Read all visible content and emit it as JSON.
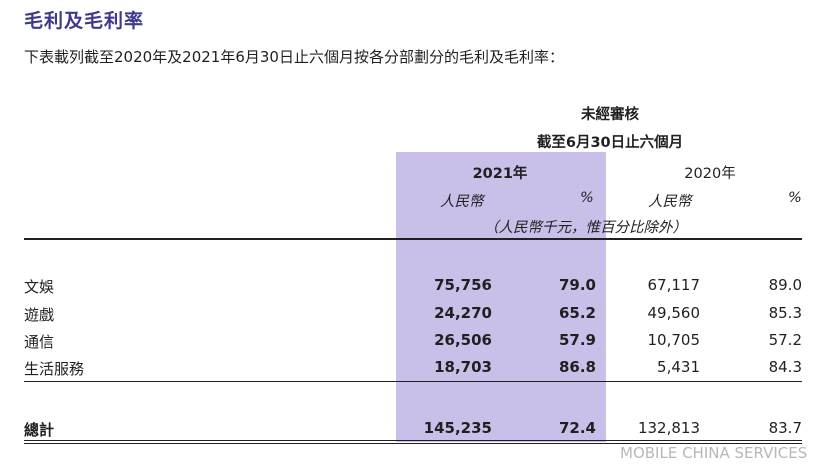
{
  "title": "毛利及毛利率",
  "subtitle": "下表載列截至2020年及2021年6月30日止六個月按各分部劃分的毛利及毛利率：",
  "header": {
    "audit": "未經審核",
    "period": "截至6月30日止六個月",
    "year_2021": "2021年",
    "year_2020": "2020年",
    "rmb_2021": "人民幣",
    "pct_2021": "%",
    "rmb_2020": "人民幣",
    "pct_2020": "%",
    "unit_note": "（人民幣千元，惟百分比除外）"
  },
  "rows": [
    {
      "label": "文娛",
      "v2021": "75,756",
      "p2021": "79.0",
      "v2020": "67,117",
      "p2020": "89.0"
    },
    {
      "label": "遊戲",
      "v2021": "24,270",
      "p2021": "65.2",
      "v2020": "49,560",
      "p2020": "85.3"
    },
    {
      "label": "通信",
      "v2021": "26,506",
      "p2021": "57.9",
      "v2020": "10,705",
      "p2020": "57.2"
    },
    {
      "label": "生活服務",
      "v2021": "18,703",
      "p2021": "86.8",
      "v2020": "5,431",
      "p2020": "84.3"
    }
  ],
  "total": {
    "label": "總計",
    "v2021": "145,235",
    "p2021": "72.4",
    "v2020": "132,813",
    "p2020": "83.7"
  },
  "watermark": "MOBILE CHINA SERVICES",
  "colors": {
    "title": "#3d3a8c",
    "highlight": "#c9bfe8",
    "text": "#231f20"
  }
}
